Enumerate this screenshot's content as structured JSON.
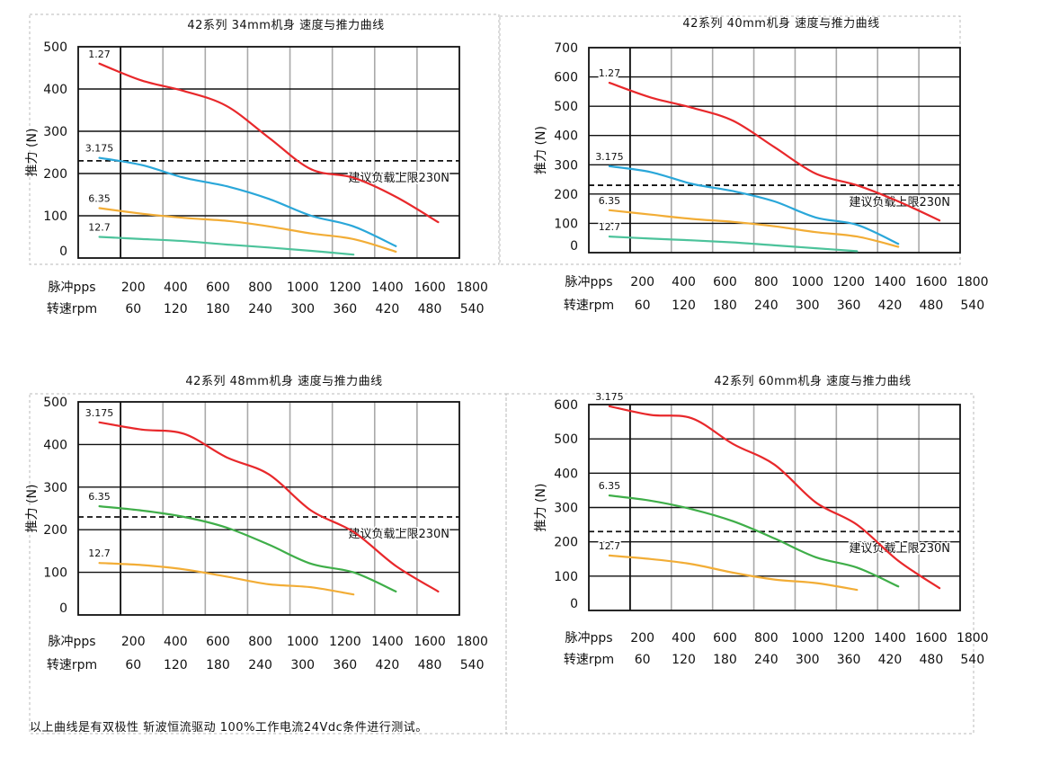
{
  "footnote": "以上曲线是有双极性 斩波恒流驱动 100%工作电流24Vdc条件进行测试。",
  "colors": {
    "red": "#e8282b",
    "blue": "#2aa7d9",
    "orange": "#f2ad36",
    "teal": "#4cc39b",
    "green": "#3fae49"
  },
  "chart_data": [
    {
      "type": "line",
      "title": "42系列  34mm机身  速度与推力曲线",
      "ylabel": "推力 (N)",
      "ylim": [
        0,
        500
      ],
      "yticks": [
        "0",
        "100",
        "200",
        "300",
        "400",
        "500"
      ],
      "x_row_label_pps": "脉冲pps",
      "x_row_label_rpm": "转速rpm",
      "x_pps": [
        "200",
        "400",
        "600",
        "800",
        "1000",
        "1200",
        "1400",
        "1600",
        "1800"
      ],
      "x_rpm": [
        "60",
        "120",
        "180",
        "240",
        "300",
        "360",
        "420",
        "480",
        "540"
      ],
      "limit_value": 230,
      "limit_label": "建议负载上限230N",
      "series": [
        {
          "name": "1.27",
          "color": "red",
          "points": [
            [
              200,
              460
            ],
            [
              400,
              420
            ],
            [
              600,
              395
            ],
            [
              800,
              360
            ],
            [
              1000,
              285
            ],
            [
              1200,
              210
            ],
            [
              1400,
              190
            ],
            [
              1600,
              145
            ],
            [
              1800,
              85
            ]
          ]
        },
        {
          "name": "3.175",
          "color": "blue",
          "points": [
            [
              200,
              237
            ],
            [
              400,
              220
            ],
            [
              600,
              190
            ],
            [
              800,
              170
            ],
            [
              1000,
              140
            ],
            [
              1200,
              100
            ],
            [
              1400,
              75
            ],
            [
              1600,
              28
            ]
          ]
        },
        {
          "name": "6.35",
          "color": "orange",
          "points": [
            [
              200,
              118
            ],
            [
              400,
              105
            ],
            [
              600,
              95
            ],
            [
              800,
              88
            ],
            [
              1000,
              75
            ],
            [
              1200,
              58
            ],
            [
              1400,
              45
            ],
            [
              1600,
              15
            ]
          ]
        },
        {
          "name": "12.7",
          "color": "teal",
          "points": [
            [
              200,
              50
            ],
            [
              400,
              45
            ],
            [
              600,
              40
            ],
            [
              800,
              32
            ],
            [
              1000,
              25
            ],
            [
              1200,
              17
            ],
            [
              1400,
              8
            ]
          ]
        }
      ]
    },
    {
      "type": "line",
      "title": "42系列  40mm机身  速度与推力曲线",
      "ylabel": "推力 (N)",
      "ylim": [
        0,
        700
      ],
      "yticks": [
        "0",
        "100",
        "200",
        "300",
        "400",
        "500",
        "600",
        "700"
      ],
      "x_row_label_pps": "脉冲pps",
      "x_row_label_rpm": "转速rpm",
      "x_pps": [
        "200",
        "400",
        "600",
        "800",
        "1000",
        "1200",
        "1400",
        "1600",
        "1800"
      ],
      "x_rpm": [
        "60",
        "120",
        "180",
        "240",
        "300",
        "360",
        "420",
        "480",
        "540"
      ],
      "limit_value": 230,
      "limit_label": "建议负载上限230N",
      "series": [
        {
          "name": "1.27",
          "color": "red",
          "points": [
            [
              200,
              580
            ],
            [
              400,
              530
            ],
            [
              600,
              495
            ],
            [
              800,
              450
            ],
            [
              1000,
              360
            ],
            [
              1200,
              270
            ],
            [
              1400,
              230
            ],
            [
              1600,
              175
            ],
            [
              1800,
              110
            ]
          ]
        },
        {
          "name": "3.175",
          "color": "blue",
          "points": [
            [
              200,
              295
            ],
            [
              400,
              275
            ],
            [
              600,
              235
            ],
            [
              800,
              210
            ],
            [
              1000,
              175
            ],
            [
              1200,
              120
            ],
            [
              1400,
              95
            ],
            [
              1600,
              30
            ]
          ]
        },
        {
          "name": "6.35",
          "color": "orange",
          "points": [
            [
              200,
              145
            ],
            [
              400,
              130
            ],
            [
              600,
              115
            ],
            [
              800,
              105
            ],
            [
              1000,
              90
            ],
            [
              1200,
              70
            ],
            [
              1400,
              55
            ],
            [
              1600,
              20
            ]
          ]
        },
        {
          "name": "12.7",
          "color": "teal",
          "points": [
            [
              200,
              55
            ],
            [
              400,
              48
            ],
            [
              600,
              42
            ],
            [
              800,
              35
            ],
            [
              1000,
              25
            ],
            [
              1200,
              15
            ],
            [
              1400,
              5
            ]
          ]
        }
      ]
    },
    {
      "type": "line",
      "title": "42系列  48mm机身  速度与推力曲线",
      "ylabel": "推力 (N)",
      "ylim": [
        0,
        500
      ],
      "yticks": [
        "0",
        "100",
        "200",
        "300",
        "400",
        "500"
      ],
      "x_row_label_pps": "脉冲pps",
      "x_row_label_rpm": "转速rpm",
      "x_pps": [
        "200",
        "400",
        "600",
        "800",
        "1000",
        "1200",
        "1400",
        "1600",
        "1800"
      ],
      "x_rpm": [
        "60",
        "120",
        "180",
        "240",
        "300",
        "360",
        "420",
        "480",
        "540"
      ],
      "limit_value": 230,
      "limit_label": "建议负载上限230N",
      "series": [
        {
          "name": "3.175",
          "color": "red",
          "points": [
            [
              200,
              452
            ],
            [
              400,
              435
            ],
            [
              600,
              425
            ],
            [
              800,
              370
            ],
            [
              1000,
              330
            ],
            [
              1200,
              245
            ],
            [
              1400,
              195
            ],
            [
              1600,
              115
            ],
            [
              1800,
              55
            ]
          ]
        },
        {
          "name": "6.35",
          "color": "green",
          "points": [
            [
              200,
              255
            ],
            [
              400,
              245
            ],
            [
              600,
              230
            ],
            [
              800,
              205
            ],
            [
              1000,
              165
            ],
            [
              1200,
              120
            ],
            [
              1400,
              100
            ],
            [
              1600,
              55
            ]
          ]
        },
        {
          "name": "12.7",
          "color": "orange",
          "points": [
            [
              200,
              122
            ],
            [
              400,
              117
            ],
            [
              600,
              107
            ],
            [
              800,
              90
            ],
            [
              1000,
              72
            ],
            [
              1200,
              65
            ],
            [
              1400,
              48
            ]
          ]
        }
      ]
    },
    {
      "type": "line",
      "title": "42系列  60mm机身  速度与推力曲线",
      "ylabel": "推力 (N)",
      "ylim": [
        0,
        600
      ],
      "yticks": [
        "0",
        "100",
        "200",
        "300",
        "400",
        "500",
        "600"
      ],
      "x_row_label_pps": "脉冲pps",
      "x_row_label_rpm": "转速rpm",
      "x_pps": [
        "200",
        "400",
        "600",
        "800",
        "1000",
        "1200",
        "1400",
        "1600",
        "1800"
      ],
      "x_rpm": [
        "60",
        "120",
        "180",
        "240",
        "300",
        "360",
        "420",
        "480",
        "540"
      ],
      "limit_value": 230,
      "limit_label": "建议负载上限230N",
      "series": [
        {
          "name": "3.175",
          "color": "red",
          "points": [
            [
              200,
              595
            ],
            [
              400,
              570
            ],
            [
              600,
              560
            ],
            [
              800,
              485
            ],
            [
              1000,
              425
            ],
            [
              1200,
              315
            ],
            [
              1400,
              250
            ],
            [
              1600,
              145
            ],
            [
              1800,
              65
            ]
          ]
        },
        {
          "name": "6.35",
          "color": "green",
          "points": [
            [
              200,
              335
            ],
            [
              400,
              320
            ],
            [
              600,
              295
            ],
            [
              800,
              260
            ],
            [
              1000,
              210
            ],
            [
              1200,
              155
            ],
            [
              1400,
              125
            ],
            [
              1600,
              70
            ]
          ]
        },
        {
          "name": "12.7",
          "color": "orange",
          "points": [
            [
              200,
              160
            ],
            [
              400,
              150
            ],
            [
              600,
              135
            ],
            [
              800,
              110
            ],
            [
              1000,
              90
            ],
            [
              1200,
              80
            ],
            [
              1400,
              60
            ]
          ]
        }
      ]
    }
  ]
}
